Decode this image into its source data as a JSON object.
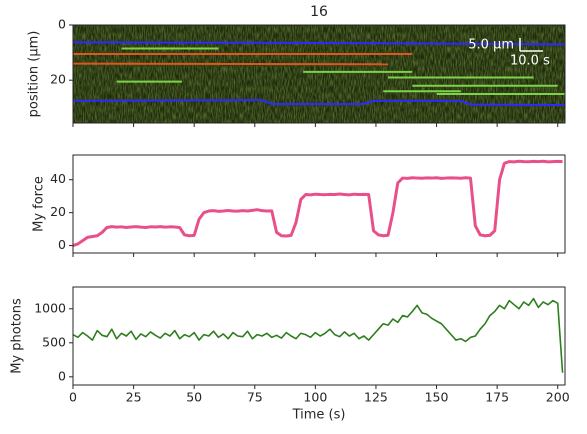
{
  "chart_data": [
    {
      "type": "kymograph",
      "title": "16",
      "y_label": "position (μm)",
      "ylim": [
        35.5,
        0
      ],
      "yticks": [
        0,
        20
      ],
      "xlim": [
        0,
        203
      ],
      "scale_bar": {
        "y_label": "5.0 μm",
        "x_label": "10.0 s"
      },
      "series": [
        {
          "color": "#2b2bff",
          "x": [
            0,
            100,
            203
          ],
          "values": [
            6.3,
            6.5,
            7
          ]
        },
        {
          "color": "#e0561f",
          "x": [
            0,
            140
          ],
          "values": [
            10.5,
            10.5
          ]
        },
        {
          "color": "#e0561f",
          "x": [
            0,
            130
          ],
          "values": [
            14,
            14.2
          ]
        },
        {
          "color": "#7cd34a",
          "x": [
            18,
            45
          ],
          "values": [
            20.5,
            20.5
          ]
        },
        {
          "color": "#7cd34a",
          "x": [
            20,
            60
          ],
          "values": [
            8.5,
            8.5
          ]
        },
        {
          "color": "#7cd34a",
          "x": [
            95,
            140
          ],
          "values": [
            17,
            17
          ]
        },
        {
          "color": "#7cd34a",
          "x": [
            130,
            190
          ],
          "values": [
            19,
            19
          ]
        },
        {
          "color": "#7cd34a",
          "x": [
            140,
            200
          ],
          "values": [
            22,
            22
          ]
        },
        {
          "color": "#7cd34a",
          "x": [
            128,
            160
          ],
          "values": [
            24,
            24
          ]
        },
        {
          "color": "#7cd34a",
          "x": [
            150,
            203
          ],
          "values": [
            25,
            25
          ]
        },
        {
          "color": "#2b2bff",
          "x": [
            0,
            78,
            82,
            120,
            124,
            160,
            164,
            203
          ],
          "values": [
            27.5,
            27.2,
            28.6,
            28.6,
            27.5,
            27.5,
            28.8,
            29
          ]
        }
      ]
    },
    {
      "type": "line",
      "y_label": "My force",
      "color": "#e8508a",
      "xlim": [
        0,
        203
      ],
      "ylim": [
        -4.5,
        55
      ],
      "yticks": [
        0,
        20,
        40
      ],
      "x": [
        0,
        2,
        4,
        6,
        8,
        10,
        12,
        14,
        16,
        18,
        20,
        22,
        24,
        26,
        28,
        30,
        32,
        34,
        36,
        38,
        40,
        42,
        44,
        46,
        48,
        50,
        52,
        54,
        56,
        58,
        60,
        62,
        64,
        66,
        68,
        70,
        72,
        74,
        76,
        78,
        80,
        82,
        84,
        86,
        88,
        90,
        92,
        94,
        96,
        98,
        100,
        102,
        104,
        106,
        108,
        110,
        112,
        114,
        116,
        118,
        120,
        122,
        124,
        126,
        128,
        130,
        132,
        134,
        136,
        138,
        140,
        142,
        144,
        146,
        148,
        150,
        152,
        154,
        156,
        158,
        160,
        162,
        164,
        166,
        168,
        170,
        172,
        174,
        176,
        178,
        180,
        182,
        184,
        186,
        188,
        190,
        192,
        194,
        196,
        198,
        200,
        202
      ],
      "values": [
        0,
        1,
        3,
        5,
        5.5,
        6,
        8,
        11,
        11.5,
        11.2,
        11.4,
        11,
        11.3,
        11.5,
        11.2,
        11,
        11.4,
        11.3,
        11.5,
        11.2,
        11.4,
        11.3,
        11,
        6.5,
        6,
        6.2,
        16,
        20,
        21,
        21.2,
        20.8,
        21,
        21.3,
        21,
        20.9,
        21.2,
        21,
        21.4,
        21.8,
        21.2,
        21,
        21.1,
        8,
        6,
        5.8,
        6.2,
        14,
        28,
        31,
        30.8,
        31.2,
        31,
        30.9,
        31.1,
        31,
        31.3,
        31,
        30.8,
        31.2,
        31,
        31.1,
        31,
        9,
        6.5,
        6,
        6.3,
        20,
        38,
        41,
        40.8,
        41.2,
        41,
        40.9,
        41.1,
        41,
        41.2,
        40.8,
        41,
        41.1,
        41,
        40.9,
        41.2,
        41,
        12,
        6.5,
        6,
        6.2,
        9,
        40,
        50,
        51,
        50.8,
        51.2,
        51,
        50.9,
        51.1,
        51,
        51.2,
        50.8,
        51,
        51.1,
        51
      ]
    },
    {
      "type": "line",
      "y_label": "My photons",
      "x_label": "Time (s)",
      "color": "#2e7d1f",
      "xlim": [
        0,
        203
      ],
      "ylim": [
        -120,
        1320
      ],
      "yticks": [
        0,
        500,
        1000
      ],
      "xticks": [
        0,
        25,
        50,
        75,
        100,
        125,
        150,
        175,
        200
      ],
      "x": [
        0,
        2,
        4,
        6,
        8,
        10,
        12,
        14,
        16,
        18,
        20,
        22,
        24,
        26,
        28,
        30,
        32,
        34,
        36,
        38,
        40,
        42,
        44,
        46,
        48,
        50,
        52,
        54,
        56,
        58,
        60,
        62,
        64,
        66,
        68,
        70,
        72,
        74,
        76,
        78,
        80,
        82,
        84,
        86,
        88,
        90,
        92,
        94,
        96,
        98,
        100,
        102,
        104,
        106,
        108,
        110,
        112,
        114,
        116,
        118,
        120,
        122,
        124,
        126,
        128,
        130,
        132,
        134,
        136,
        138,
        140,
        142,
        144,
        146,
        148,
        150,
        152,
        154,
        156,
        158,
        160,
        162,
        164,
        166,
        168,
        170,
        172,
        174,
        176,
        178,
        180,
        182,
        184,
        186,
        188,
        190,
        192,
        194,
        196,
        198,
        200,
        202
      ],
      "values": [
        620,
        580,
        650,
        600,
        540,
        680,
        610,
        590,
        700,
        560,
        640,
        600,
        670,
        550,
        630,
        590,
        660,
        610,
        570,
        640,
        600,
        680,
        560,
        620,
        590,
        650,
        540,
        620,
        600,
        670,
        580,
        630,
        560,
        650,
        600,
        590,
        670,
        560,
        620,
        600,
        640,
        580,
        610,
        570,
        650,
        600,
        560,
        640,
        620,
        580,
        650,
        600,
        640,
        700,
        620,
        590,
        660,
        600,
        640,
        560,
        600,
        540,
        620,
        700,
        780,
        760,
        850,
        800,
        900,
        880,
        960,
        1050,
        940,
        920,
        860,
        820,
        780,
        700,
        620,
        540,
        560,
        520,
        580,
        600,
        700,
        780,
        900,
        960,
        1050,
        1000,
        1120,
        1060,
        1000,
        1100,
        1050,
        1150,
        1020,
        1100,
        1060,
        1120,
        1080,
        60
      ]
    }
  ]
}
